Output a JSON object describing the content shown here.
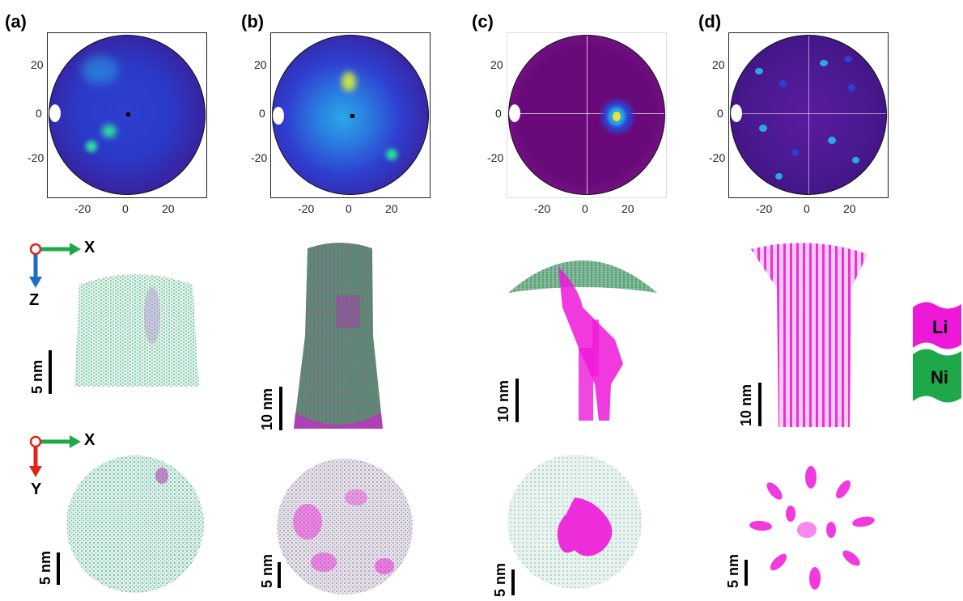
{
  "panels": [
    {
      "label": "(a)",
      "map_colors": [
        "#3a0f7a",
        "#2e3fd0",
        "#2aa8e8",
        "#2ce0a0"
      ],
      "hotspots": "diffuse"
    },
    {
      "label": "(b)",
      "map_colors": [
        "#3a0f7a",
        "#2e3fd0",
        "#2aa8e8",
        "#c8e24a"
      ],
      "hotspots": "central"
    },
    {
      "label": "(c)",
      "map_colors": [
        "#6a0a7a",
        "#3a0f7a",
        "#2aa8e8",
        "#e8e23a"
      ],
      "hotspots": "single"
    },
    {
      "label": "(d)",
      "map_colors": [
        "#3a0f7a",
        "#5a1aa0",
        "#2e3fd0",
        "#2aa8e8"
      ],
      "hotspots": "scattered"
    }
  ],
  "detector_axis": {
    "y_ticks": [
      "20",
      "0",
      "-20"
    ],
    "x_ticks": [
      "-20",
      "0",
      "20"
    ]
  },
  "axes_xz": {
    "x": "X",
    "z": "Z"
  },
  "axes_xy": {
    "x": "X",
    "y": "Y"
  },
  "scalebars_side": [
    "5 nm",
    "10 nm",
    "10 nm",
    "10 nm"
  ],
  "scalebars_top": [
    "5 nm",
    "5 nm",
    "5 nm",
    "5 nm"
  ],
  "legend": [
    {
      "label": "Li",
      "color": "#ee18d8"
    },
    {
      "label": "Ni",
      "color": "#1fa84a"
    }
  ],
  "colors": {
    "li": "#ee18d8",
    "ni": "#1fa84a",
    "axis_x": "#1fa84a",
    "axis_z": "#1a6fc4",
    "axis_y": "#e0241a",
    "origin": "#e0241a"
  }
}
